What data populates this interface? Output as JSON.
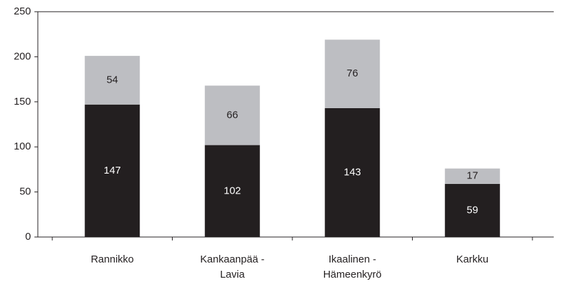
{
  "chart_data": {
    "type": "stacked_bar",
    "categories": [
      "Rannikko",
      "Kankaanpää - Lavia",
      "Ikaalinen - Hämeenkyrö",
      "Karkku"
    ],
    "series": [
      {
        "color": "#231f20",
        "label_color": "#ffffff",
        "values": [
          147,
          102,
          143,
          59
        ]
      },
      {
        "color": "#bdbec2",
        "label_color": "#231f20",
        "values": [
          54,
          66,
          76,
          17
        ]
      }
    ],
    "ylim": [
      0,
      250
    ],
    "yticks": [
      0,
      50,
      100,
      150,
      200,
      250
    ]
  }
}
